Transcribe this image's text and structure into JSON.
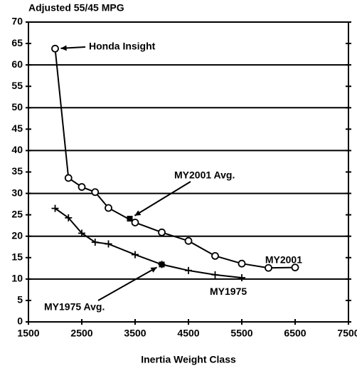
{
  "chart_data": {
    "type": "line",
    "title": "Adjusted 55/45 MPG",
    "x_label": "Inertia Weight Class",
    "xlim": [
      1500,
      7500
    ],
    "xticks": [
      1500,
      2500,
      3500,
      4500,
      5500,
      6500,
      7500
    ],
    "ylim": [
      0,
      70
    ],
    "yticks": [
      0,
      5,
      10,
      15,
      20,
      25,
      30,
      35,
      40,
      45,
      50,
      55,
      60,
      65,
      70
    ],
    "ygrid": [
      10,
      20,
      30,
      40,
      50,
      60,
      70
    ],
    "series": [
      {
        "name": "MY2001",
        "color": "#000000",
        "marker": "circle",
        "x": [
          2000,
          2250,
          2500,
          2750,
          3000,
          3500,
          4000,
          4500,
          5000,
          5500,
          6000,
          6500
        ],
        "values": [
          63.8,
          33.6,
          31.5,
          30.3,
          26.6,
          23.2,
          20.9,
          18.9,
          15.4,
          13.6,
          12.6,
          12.7
        ]
      },
      {
        "name": "MY1975",
        "color": "#000000",
        "marker": "plus",
        "x": [
          2000,
          2250,
          2500,
          2750,
          3000,
          3500,
          4000,
          4500,
          5000,
          5500
        ],
        "values": [
          26.5,
          24.3,
          20.7,
          18.6,
          18.2,
          15.7,
          13.4,
          12.0,
          11.0,
          10.3
        ]
      }
    ],
    "annotations": [
      {
        "text": "Honda Insight"
      },
      {
        "text": "MY2001 Avg.",
        "x": 3400,
        "y": 24.1
      },
      {
        "text": "MY1975 Avg.",
        "x": 4000,
        "y": 13.4
      }
    ]
  }
}
